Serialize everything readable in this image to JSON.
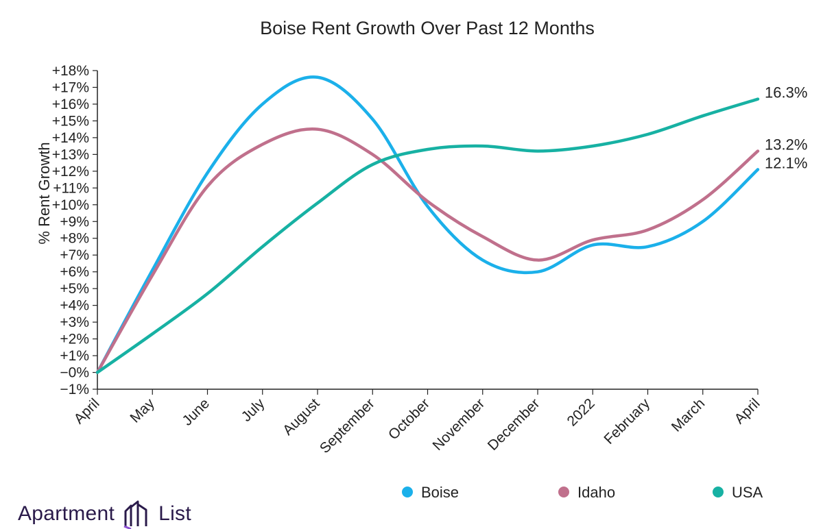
{
  "brand": {
    "name_left": "Apartment",
    "name_right": "List",
    "logo_icon": "apartment-list-logo-icon",
    "logo_color": "#2a1a4a",
    "logo_accent": "#8b4fd1"
  },
  "chart_data": {
    "type": "line",
    "title": "Boise Rent Growth Over Past 12 Months",
    "xlabel": "",
    "ylabel": "% Rent Growth",
    "categories": [
      "April",
      "May",
      "June",
      "July",
      "August",
      "September",
      "October",
      "November",
      "December",
      "2022",
      "February",
      "March",
      "April"
    ],
    "ylim": [
      -1,
      18
    ],
    "y_ticks": [
      "−1%",
      "−0%",
      "+1%",
      "+2%",
      "+3%",
      "+4%",
      "+5%",
      "+6%",
      "+7%",
      "+8%",
      "+9%",
      "+10%",
      "+11%",
      "+12%",
      "+13%",
      "+14%",
      "+15%",
      "+16%",
      "+17%",
      "+18%"
    ],
    "grid": false,
    "legend_position": "bottom-right",
    "series": [
      {
        "name": "Boise",
        "color": "#1bb0ea",
        "values": [
          0,
          6.1,
          11.9,
          16.0,
          17.6,
          15.1,
          9.9,
          6.7,
          6.0,
          7.6,
          7.5,
          9.0,
          12.1
        ],
        "end_label": "12.1%"
      },
      {
        "name": "Idaho",
        "color": "#c0708c",
        "values": [
          0,
          5.8,
          11.1,
          13.6,
          14.5,
          13.0,
          10.2,
          8.1,
          6.7,
          7.9,
          8.5,
          10.3,
          13.2
        ],
        "end_label": "13.2%"
      },
      {
        "name": "USA",
        "color": "#17b1a3",
        "values": [
          0,
          2.3,
          4.7,
          7.5,
          10.1,
          12.4,
          13.3,
          13.5,
          13.2,
          13.5,
          14.2,
          15.3,
          16.3
        ],
        "end_label": "16.3%"
      }
    ]
  }
}
